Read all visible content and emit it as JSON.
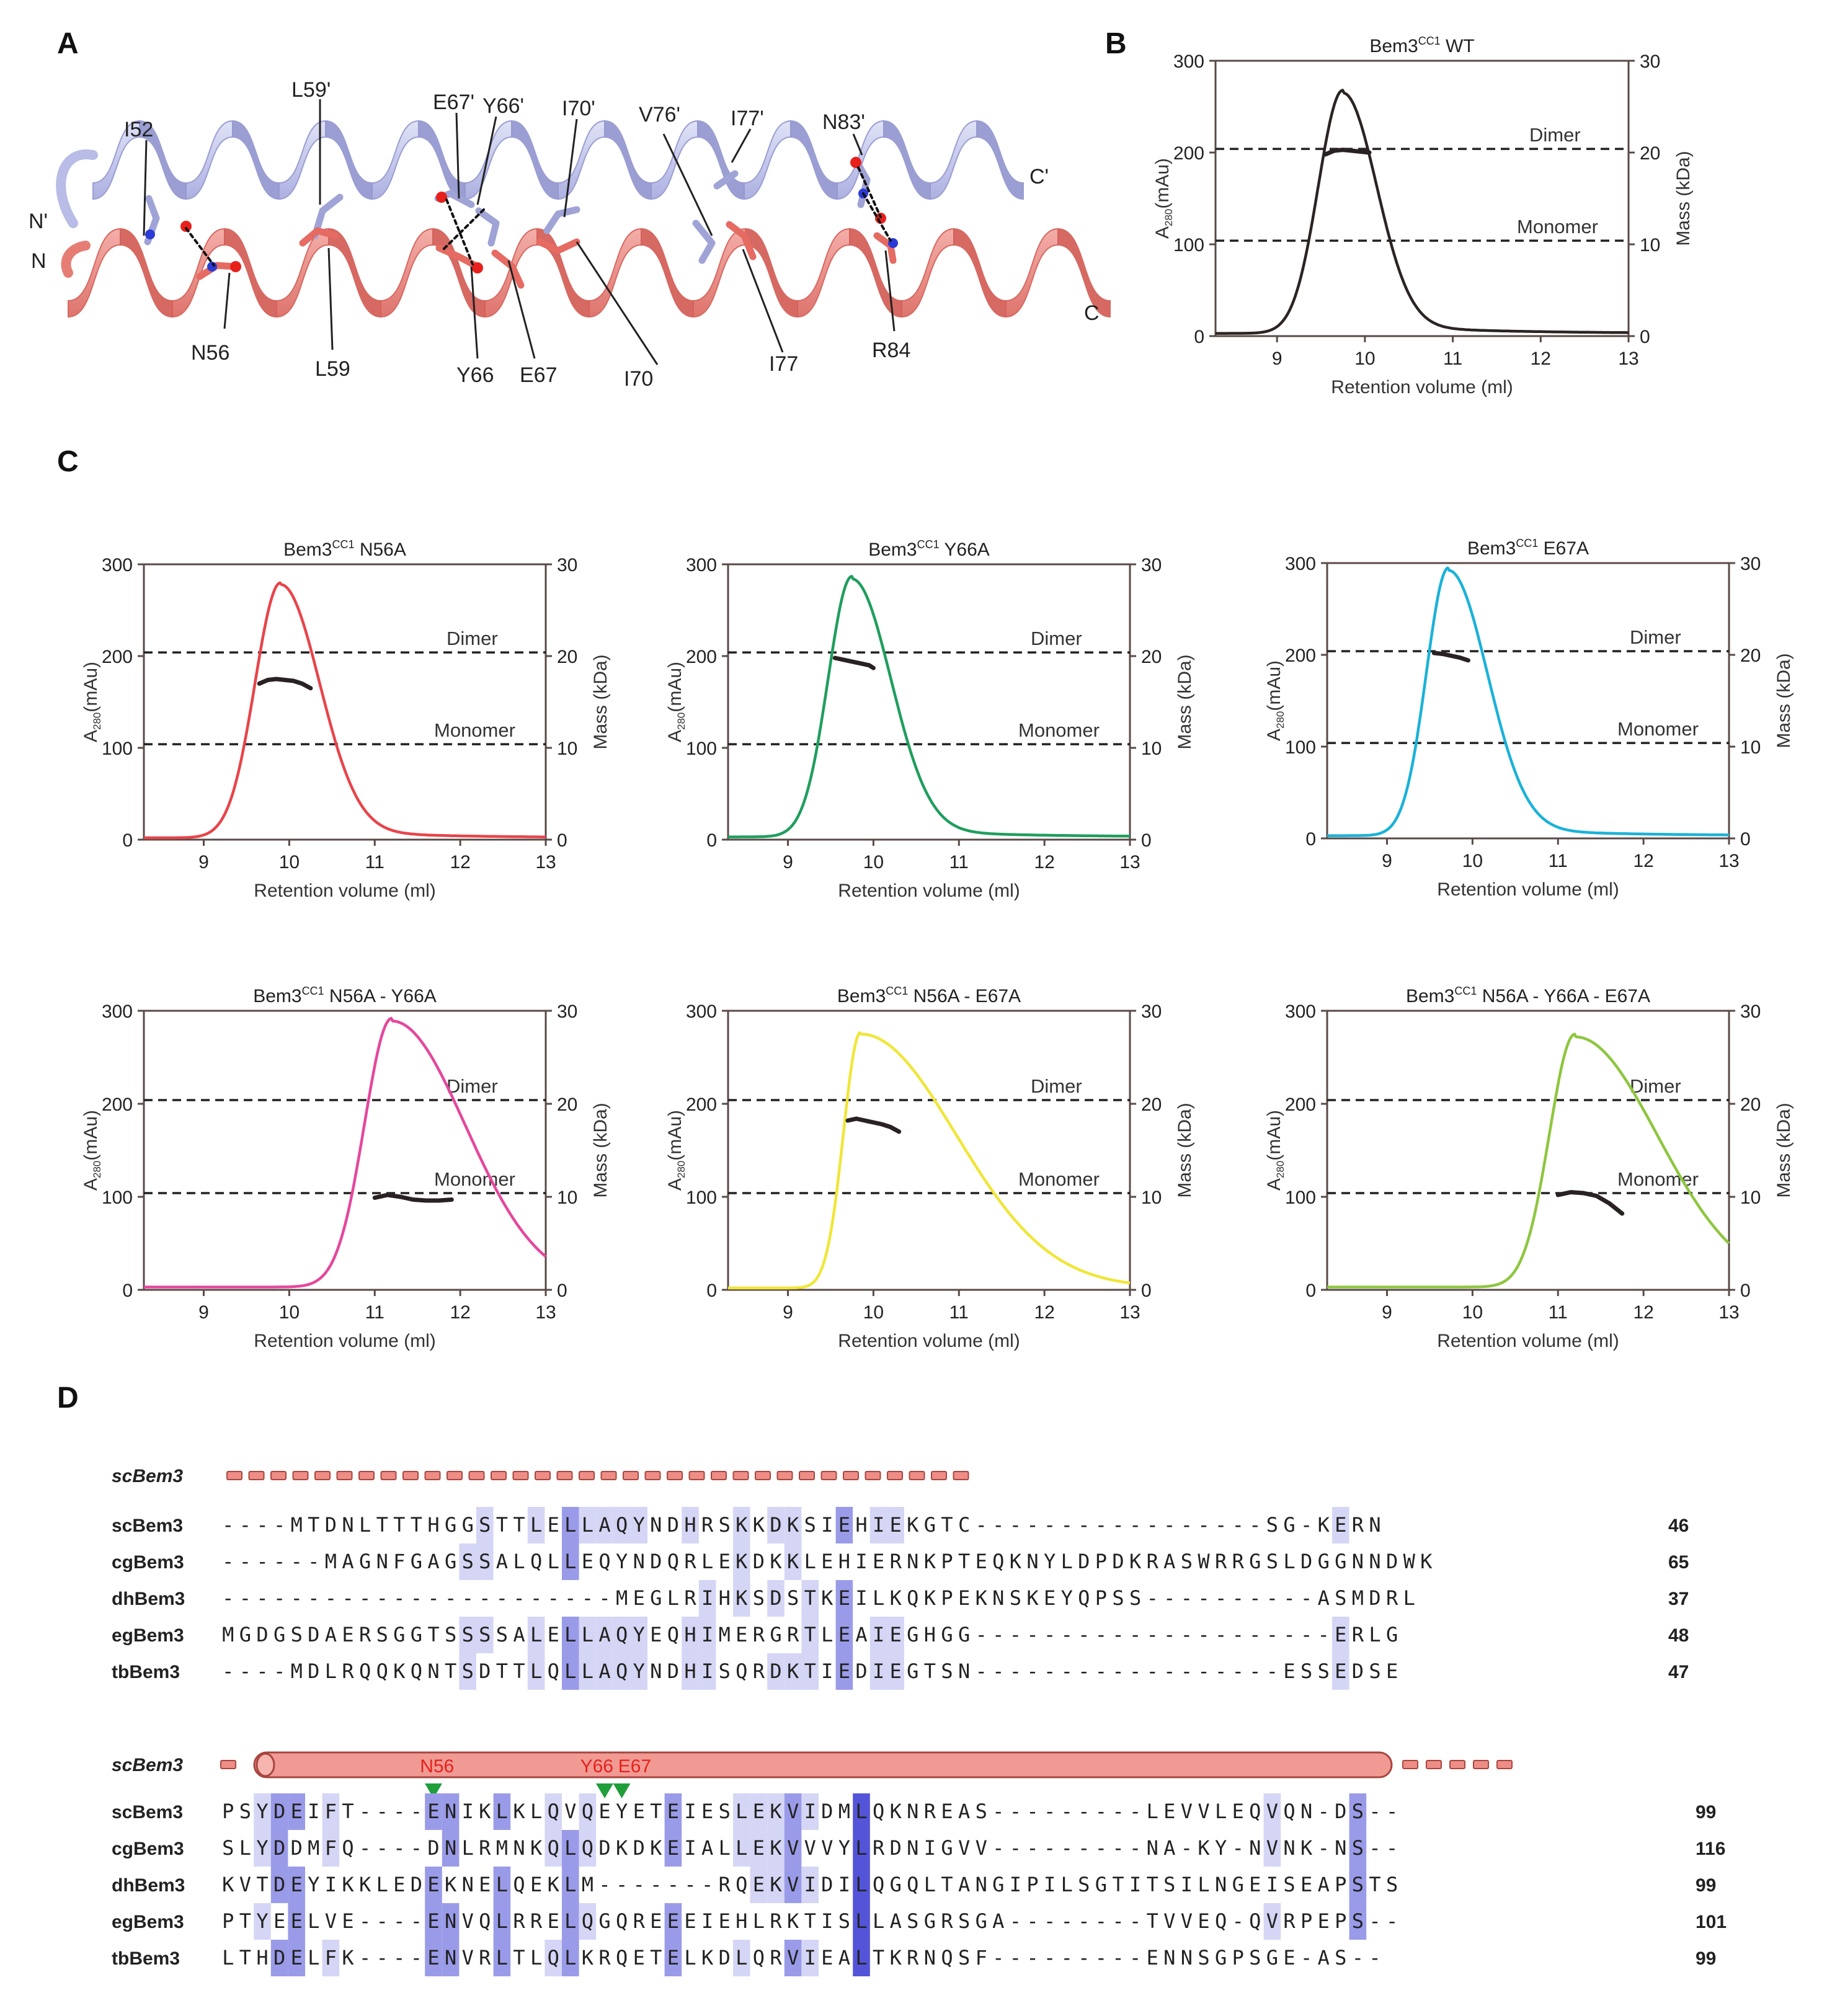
{
  "panel_labels": [
    "A",
    "B",
    "C",
    "D"
  ],
  "panelA": {
    "labels_top": [
      "I52",
      "L59'",
      "E67'",
      "Y66'",
      "I70'",
      "V76'",
      "I77'",
      "N83'"
    ],
    "labels_bottom": [
      "N56",
      "L59",
      "Y66",
      "E67",
      "I70",
      "I77",
      "R84"
    ],
    "termini": [
      "N'",
      "N",
      "C'",
      "C"
    ],
    "colors": {
      "top_helix": "#c4c8ea",
      "bottom_helix": "#ee8d86"
    }
  },
  "chart_data": [
    {
      "type": "line",
      "panel": "B",
      "title_main": "Bem3",
      "title_sup": "CC1",
      "title_rest": "WT",
      "color": "#2b2423",
      "xlabel": "Retention volume (ml)",
      "ylabel_main": "A",
      "ylabel_sub": "280",
      "ylabel_rest": "(mAu)",
      "y2label": "Mass (kDa)",
      "xlim": [
        8.3,
        13
      ],
      "ylim": [
        0,
        300
      ],
      "y2lim": [
        0,
        30
      ],
      "xticks": [
        "9",
        "10",
        "11",
        "12",
        "13"
      ],
      "yticks": [
        "0",
        "100",
        "200",
        "300"
      ],
      "y2ticks": [
        "0",
        "10",
        "20",
        "30"
      ],
      "peak": {
        "x": 9.75,
        "y": 268,
        "rise_width": 0.28,
        "tail_width": 0.38,
        "base_offset": 3
      },
      "reference_lines": [
        {
          "label": "Dimer",
          "value": 20.4
        },
        {
          "label": "Monomer",
          "value": 10.4
        }
      ],
      "mass": {
        "x": [
          9.55,
          9.65,
          9.75,
          9.85,
          9.95,
          10.05
        ],
        "y": [
          19.8,
          20.2,
          20.3,
          20.2,
          20.1,
          20.0
        ]
      }
    },
    {
      "type": "line",
      "panel": "C1",
      "title_main": "Bem3",
      "title_sup": "CC1",
      "title_rest": "N56A",
      "color": "#e8444a",
      "xlabel": "Retention volume (ml)",
      "ylabel_main": "A",
      "ylabel_sub": "280",
      "ylabel_rest": "(mAu)",
      "y2label": "Mass (kDa)",
      "xlim": [
        8.3,
        13
      ],
      "ylim": [
        0,
        300
      ],
      "y2lim": [
        0,
        30
      ],
      "xticks": [
        "9",
        "10",
        "11",
        "12",
        "13"
      ],
      "yticks": [
        "0",
        "100",
        "200",
        "300"
      ],
      "y2ticks": [
        "0",
        "10",
        "20",
        "30"
      ],
      "peak": {
        "x": 9.9,
        "y": 280,
        "rise_width": 0.3,
        "tail_width": 0.45,
        "base_offset": 2
      },
      "reference_lines": [
        {
          "label": "Dimer",
          "value": 20.4
        },
        {
          "label": "Monomer",
          "value": 10.4
        }
      ],
      "mass": {
        "x": [
          9.65,
          9.75,
          9.85,
          9.95,
          10.05,
          10.15,
          10.25
        ],
        "y": [
          17.0,
          17.4,
          17.5,
          17.4,
          17.3,
          17.0,
          16.5
        ]
      }
    },
    {
      "type": "line",
      "panel": "C2",
      "title_main": "Bem3",
      "title_sup": "CC1",
      "title_rest": "Y66A",
      "color": "#1f9e5e",
      "xlabel": "Retention volume (ml)",
      "ylabel_main": "A",
      "ylabel_sub": "280",
      "ylabel_rest": "(mAu)",
      "y2label": "Mass (kDa)",
      "xlim": [
        8.3,
        13
      ],
      "ylim": [
        0,
        300
      ],
      "y2lim": [
        0,
        30
      ],
      "xticks": [
        "9",
        "10",
        "11",
        "12",
        "13"
      ],
      "yticks": [
        "0",
        "100",
        "200",
        "300"
      ],
      "y2ticks": [
        "0",
        "10",
        "20",
        "30"
      ],
      "peak": {
        "x": 9.75,
        "y": 287,
        "rise_width": 0.28,
        "tail_width": 0.45,
        "base_offset": 3
      },
      "reference_lines": [
        {
          "label": "Dimer",
          "value": 20.4
        },
        {
          "label": "Monomer",
          "value": 10.4
        }
      ],
      "mass": {
        "x": [
          9.55,
          9.65,
          9.75,
          9.85,
          9.95,
          10.0
        ],
        "y": [
          19.8,
          19.6,
          19.4,
          19.2,
          19.0,
          18.7
        ]
      }
    },
    {
      "type": "line",
      "panel": "C3",
      "title_main": "Bem3",
      "title_sup": "CC1",
      "title_rest": "E67A",
      "color": "#1ab2d8",
      "xlabel": "Retention volume (ml)",
      "ylabel_main": "A",
      "ylabel_sub": "280",
      "ylabel_rest": "(mAu)",
      "y2label": "Mass (kDa)",
      "xlim": [
        8.3,
        13
      ],
      "ylim": [
        0,
        300
      ],
      "y2lim": [
        0,
        30
      ],
      "xticks": [
        "9",
        "10",
        "11",
        "12",
        "13"
      ],
      "yticks": [
        "0",
        "100",
        "200",
        "300"
      ],
      "y2ticks": [
        "0",
        "10",
        "20",
        "30"
      ],
      "peak": {
        "x": 9.72,
        "y": 295,
        "rise_width": 0.26,
        "tail_width": 0.45,
        "base_offset": 3
      },
      "reference_lines": [
        {
          "label": "Dimer",
          "value": 20.4
        },
        {
          "label": "Monomer",
          "value": 10.4
        }
      ],
      "mass": {
        "x": [
          9.55,
          9.65,
          9.75,
          9.85,
          9.95
        ],
        "y": [
          20.2,
          20.1,
          19.9,
          19.7,
          19.4
        ]
      }
    },
    {
      "type": "line",
      "panel": "C4",
      "title_main": "Bem3",
      "title_sup": "CC1",
      "title_rest": "N56A - Y66A",
      "color": "#e5479d",
      "xlabel": "Retention volume (ml)",
      "ylabel_main": "A",
      "ylabel_sub": "280",
      "ylabel_rest": "(mAu)",
      "y2label": "Mass (kDa)",
      "xlim": [
        8.3,
        13
      ],
      "ylim": [
        0,
        300
      ],
      "y2lim": [
        0,
        30
      ],
      "xticks": [
        "9",
        "10",
        "11",
        "12",
        "13"
      ],
      "yticks": [
        "0",
        "100",
        "200",
        "300"
      ],
      "y2ticks": [
        "0",
        "10",
        "20",
        "30"
      ],
      "peak": {
        "x": 11.2,
        "y": 292,
        "rise_width": 0.32,
        "tail_width": 0.85,
        "base_offset": 3
      },
      "reference_lines": [
        {
          "label": "Dimer",
          "value": 20.4
        },
        {
          "label": "Monomer",
          "value": 10.4
        }
      ],
      "mass": {
        "x": [
          11.0,
          11.15,
          11.3,
          11.45,
          11.6,
          11.75,
          11.9
        ],
        "y": [
          9.9,
          10.2,
          10.0,
          9.7,
          9.6,
          9.6,
          9.7
        ]
      }
    },
    {
      "type": "line",
      "panel": "C5",
      "title_main": "Bem3",
      "title_sup": "CC1",
      "title_rest": "N56A - E67A",
      "color": "#f0e636",
      "xlabel": "Retention volume (ml)",
      "ylabel_main": "A",
      "ylabel_sub": "280",
      "ylabel_rest": "(mAu)",
      "y2label": "Mass (kDa)",
      "xlim": [
        8.3,
        13
      ],
      "ylim": [
        0,
        300
      ],
      "y2lim": [
        0,
        30
      ],
      "xticks": [
        "9",
        "10",
        "11",
        "12",
        "13"
      ],
      "yticks": [
        "0",
        "100",
        "200",
        "300"
      ],
      "y2ticks": [
        "0",
        "10",
        "20",
        "30"
      ],
      "peak": {
        "x": 9.85,
        "y": 277,
        "rise_width": 0.2,
        "tail_width": 1.1,
        "base_offset": 2
      },
      "reference_lines": [
        {
          "label": "Dimer",
          "value": 20.4
        },
        {
          "label": "Monomer",
          "value": 10.4
        }
      ],
      "mass": {
        "x": [
          9.7,
          9.8,
          9.9,
          10.0,
          10.1,
          10.2,
          10.3
        ],
        "y": [
          18.2,
          18.4,
          18.2,
          18.0,
          17.8,
          17.5,
          17.0
        ]
      }
    },
    {
      "type": "line",
      "panel": "C6",
      "title_main": "Bem3",
      "title_sup": "CC1",
      "title_rest": "N56A - Y66A - E67A",
      "color": "#8ec63f",
      "xlabel": "Retention volume (ml)",
      "ylabel_main": "A",
      "ylabel_sub": "280",
      "ylabel_rest": "(mAu)",
      "y2label": "Mass (kDa)",
      "xlim": [
        8.3,
        13
      ],
      "ylim": [
        0,
        300
      ],
      "y2lim": [
        0,
        30
      ],
      "xticks": [
        "9",
        "10",
        "11",
        "12",
        "13"
      ],
      "yticks": [
        "0",
        "100",
        "200",
        "300"
      ],
      "y2ticks": [
        "0",
        "10",
        "20",
        "30"
      ],
      "peak": {
        "x": 11.2,
        "y": 275,
        "rise_width": 0.3,
        "tail_width": 0.95,
        "base_offset": 3
      },
      "reference_lines": [
        {
          "label": "Dimer",
          "value": 20.4
        },
        {
          "label": "Monomer",
          "value": 10.4
        }
      ],
      "mass": {
        "x": [
          11.0,
          11.15,
          11.3,
          11.45,
          11.6,
          11.75
        ],
        "y": [
          10.2,
          10.5,
          10.4,
          10.1,
          9.3,
          8.2
        ]
      }
    }
  ],
  "panelD": {
    "ss_label": "scBem3",
    "mutations": [
      "N56",
      "Y66",
      "E67"
    ],
    "blocks": [
      {
        "rows": [
          {
            "name": "scBem3",
            "seq": "----MTDNLTTTHGGSTTLELLAQYNDHRSKKDKSIEHIEKGTC-----------------SG-KERN",
            "num": "46"
          },
          {
            "name": "cgBem3",
            "seq": "------MAGNFGAGSSALQLLEQYNDQRLEKDKKLEHIERNKPTEQKNYLDPDKRASWRRGSLDGGNNDWK",
            "num": "65"
          },
          {
            "name": "dhBem3",
            "seq": "-----------------------MEGLRIHKSDSTKEILKQKPEKNSKEYQPSS----------ASMDRL",
            "num": "37"
          },
          {
            "name": "egBem3",
            "seq": "MGDGSDAERSGGTSSSSALELLAQYEQHIMERGRTLEAIEGHGG---------------------ERLG",
            "num": "48"
          },
          {
            "name": "tbBem3",
            "seq": "----MDLRQQKQNTSDTTLQLLAQYNDHISQRDKTIEDIEGTSN------------------ESSEDSE",
            "num": "47"
          }
        ]
      },
      {
        "rows": [
          {
            "name": "scBem3",
            "seq": "PSYDEIFT----ENIKLKLQVQEYETEIESLEKVIDMLQKNREAS---------LEVVLEQVQN-DS--",
            "num": "99"
          },
          {
            "name": "cgBem3",
            "seq": "SLYDDMFQ----DNLRMNKQLQDKDKEIALLEKVVVYLRDNIGVV---------NA-KY-NVNK-NS--",
            "num": "116"
          },
          {
            "name": "dhBem3",
            "seq": "KVTDEYIKKLEDEKNELQEKLM-------RQEKVIDILQGQLTANGIPILSGTITSILNGEISEAPSTS",
            "num": "99"
          },
          {
            "name": "egBem3",
            "seq": "PTYEELVE----ENVQLRRELQGQREEEIEHLRKTISLLASGRSGA--------TVVEQ-QVRPEPS--",
            "num": "101"
          },
          {
            "name": "tbBem3",
            "seq": "LTHDELFK----ENVRLTLQLKRQETELKDLQRVIEALTKRNQSF---------ENNSGPSGE-AS--",
            "num": "99"
          }
        ]
      }
    ],
    "shading": {
      "light": "#d5d6f5",
      "medium": "#9a9be8",
      "dark": "#5454d9"
    }
  }
}
